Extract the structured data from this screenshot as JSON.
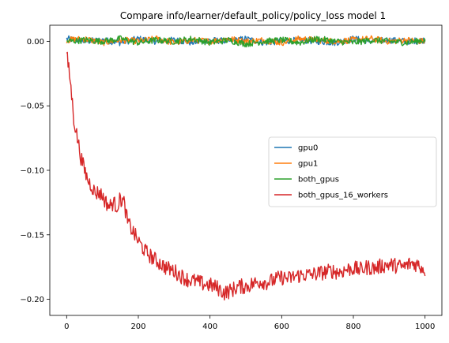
{
  "chart_data": {
    "type": "line",
    "title": "Compare info/learner/default_policy/policy_loss model 1",
    "xlabel": "",
    "ylabel": "",
    "xlim": [
      -47,
      1047
    ],
    "ylim": [
      -0.2125,
      0.0125
    ],
    "xticks": [
      0,
      200,
      400,
      600,
      800,
      1000
    ],
    "xtick_labels": [
      "0",
      "200",
      "400",
      "600",
      "800",
      "1000"
    ],
    "yticks": [
      0.0,
      -0.05,
      -0.1,
      -0.15,
      -0.2
    ],
    "ytick_labels": [
      "0.00",
      "−0.05",
      "−0.10",
      "−0.15",
      "−0.20"
    ],
    "grid": false,
    "legend_position": "center-right",
    "x_range": [
      0,
      1000
    ],
    "series": [
      {
        "name": "gpu0",
        "color": "#1f77b4",
        "x": [
          0,
          50,
          100,
          150,
          200,
          250,
          300,
          350,
          400,
          450,
          500,
          550,
          600,
          650,
          700,
          750,
          800,
          850,
          900,
          950,
          1000
        ],
        "values": [
          0.002,
          0.0,
          0.001,
          -0.001,
          0.002,
          0.0,
          0.001,
          -0.001,
          0.001,
          0.0,
          0.002,
          -0.001,
          0.0,
          0.001,
          0.0,
          -0.001,
          0.002,
          0.0,
          0.001,
          0.0,
          0.001
        ]
      },
      {
        "name": "gpu1",
        "color": "#ff7f0e",
        "x": [
          0,
          50,
          100,
          150,
          200,
          250,
          300,
          350,
          400,
          450,
          500,
          550,
          600,
          650,
          700,
          750,
          800,
          850,
          900,
          950,
          1000
        ],
        "values": [
          0.001,
          0.002,
          -0.001,
          0.001,
          0.0,
          0.002,
          -0.001,
          0.001,
          0.0,
          0.002,
          0.0,
          0.001,
          -0.001,
          0.002,
          0.001,
          0.0,
          0.001,
          0.002,
          0.0,
          0.001,
          0.0
        ]
      },
      {
        "name": "both_gpus",
        "color": "#2ca02c",
        "x": [
          0,
          50,
          100,
          150,
          200,
          250,
          300,
          350,
          400,
          450,
          500,
          550,
          600,
          650,
          700,
          750,
          800,
          850,
          900,
          950,
          1000
        ],
        "values": [
          0.0,
          0.001,
          0.0,
          0.002,
          -0.001,
          0.001,
          0.0,
          0.002,
          -0.001,
          0.001,
          -0.002,
          0.0,
          0.001,
          -0.001,
          0.002,
          0.0,
          -0.001,
          0.001,
          0.0,
          -0.001,
          0.001
        ]
      },
      {
        "name": "both_gpus_16_workers",
        "color": "#d62728",
        "x": [
          0,
          10,
          20,
          30,
          40,
          50,
          60,
          70,
          80,
          90,
          100,
          110,
          120,
          130,
          140,
          150,
          160,
          170,
          180,
          190,
          200,
          220,
          240,
          260,
          280,
          300,
          320,
          340,
          360,
          380,
          400,
          420,
          440,
          460,
          480,
          500,
          520,
          540,
          560,
          580,
          600,
          620,
          640,
          660,
          680,
          700,
          720,
          740,
          760,
          780,
          800,
          820,
          840,
          860,
          880,
          900,
          920,
          940,
          960,
          980,
          1000
        ],
        "values": [
          -0.01,
          -0.03,
          -0.06,
          -0.075,
          -0.09,
          -0.1,
          -0.108,
          -0.112,
          -0.118,
          -0.117,
          -0.12,
          -0.125,
          -0.128,
          -0.125,
          -0.128,
          -0.122,
          -0.125,
          -0.14,
          -0.145,
          -0.15,
          -0.155,
          -0.163,
          -0.168,
          -0.172,
          -0.176,
          -0.178,
          -0.182,
          -0.185,
          -0.186,
          -0.188,
          -0.189,
          -0.191,
          -0.195,
          -0.193,
          -0.19,
          -0.19,
          -0.188,
          -0.186,
          -0.187,
          -0.185,
          -0.183,
          -0.184,
          -0.182,
          -0.181,
          -0.181,
          -0.18,
          -0.179,
          -0.178,
          -0.179,
          -0.177,
          -0.176,
          -0.177,
          -0.175,
          -0.176,
          -0.174,
          -0.173,
          -0.174,
          -0.175,
          -0.172,
          -0.173,
          -0.177
        ]
      }
    ]
  }
}
